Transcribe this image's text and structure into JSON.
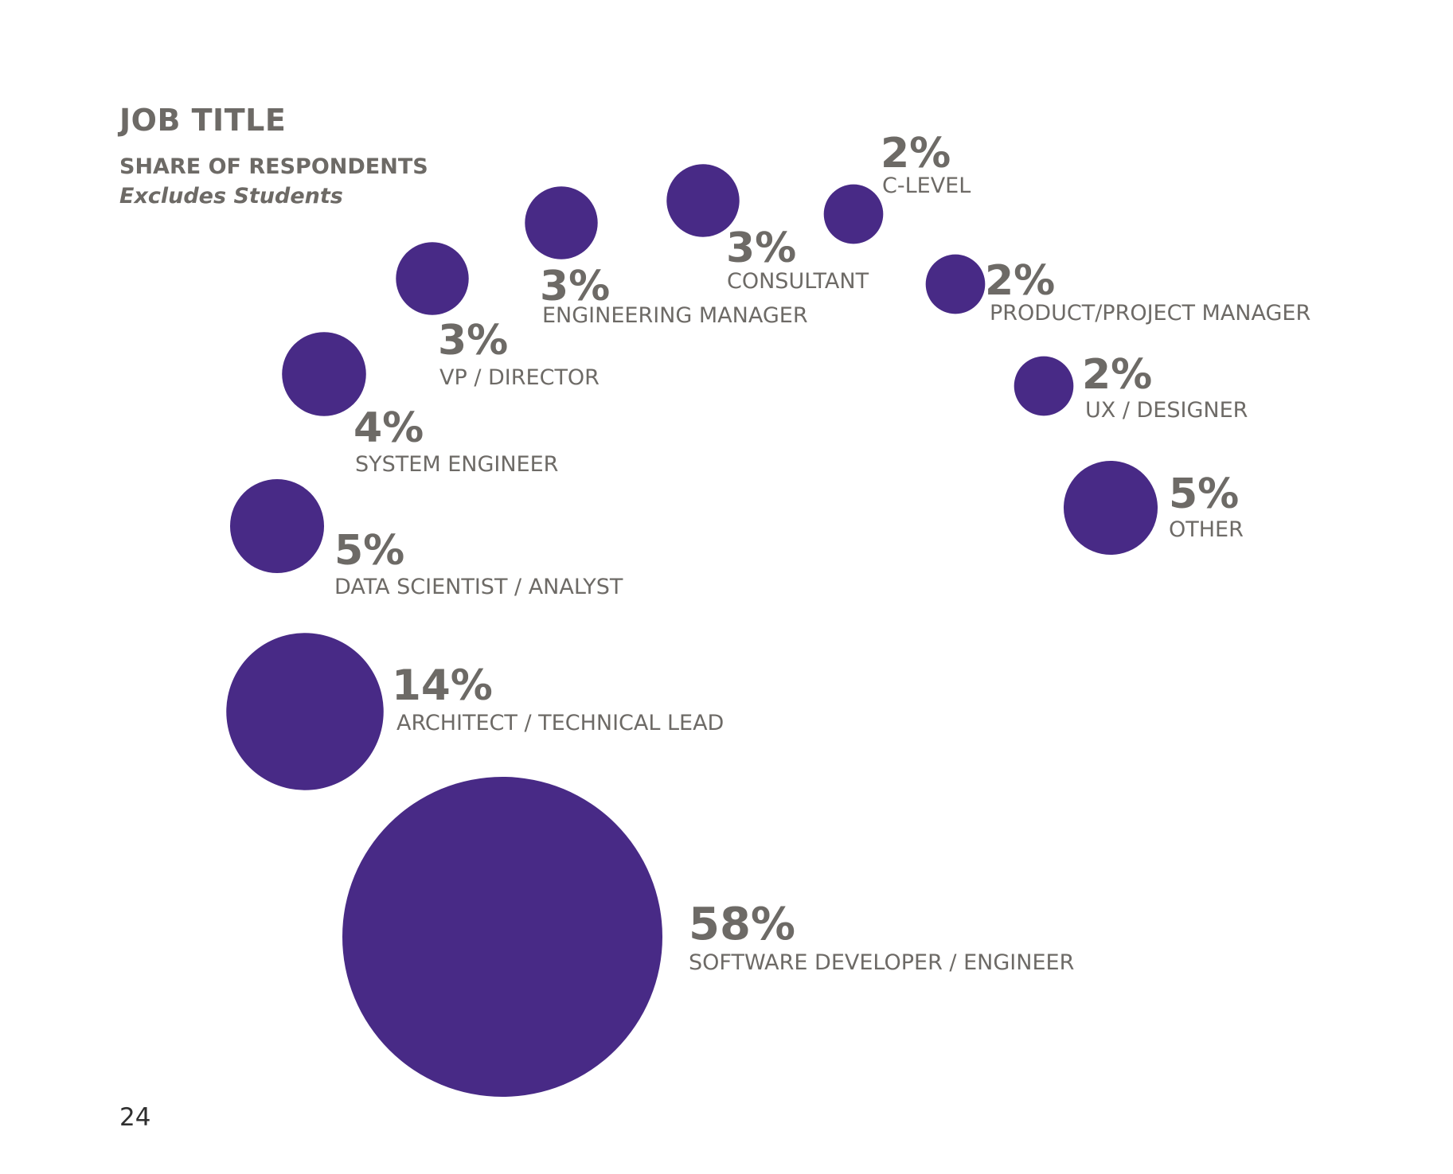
{
  "page": {
    "number": "24"
  },
  "chart_data": {
    "type": "bubble",
    "title": "JOB TITLE",
    "subtitle": "SHARE OF RESPONDENTS",
    "note": "Excludes Students",
    "unit": "%",
    "color": "#482a86",
    "text_color": "#6d6a66",
    "categories": [
      "SOFTWARE DEVELOPER / ENGINEER",
      "ARCHITECT / TECHNICAL LEAD",
      "DATA SCIENTIST / ANALYST",
      "SYSTEM ENGINEER",
      "VP / DIRECTOR",
      "ENGINEERING MANAGER",
      "CONSULTANT",
      "C-LEVEL",
      "PRODUCT/PROJECT MANAGER",
      "UX / DESIGNER",
      "OTHER"
    ],
    "values": [
      58,
      14,
      5,
      4,
      3,
      3,
      3,
      2,
      2,
      2,
      5
    ],
    "value_labels": [
      "58%",
      "14%",
      "5%",
      "4%",
      "3%",
      "3%",
      "3%",
      "2%",
      "2%",
      "2%",
      "5%"
    ]
  }
}
